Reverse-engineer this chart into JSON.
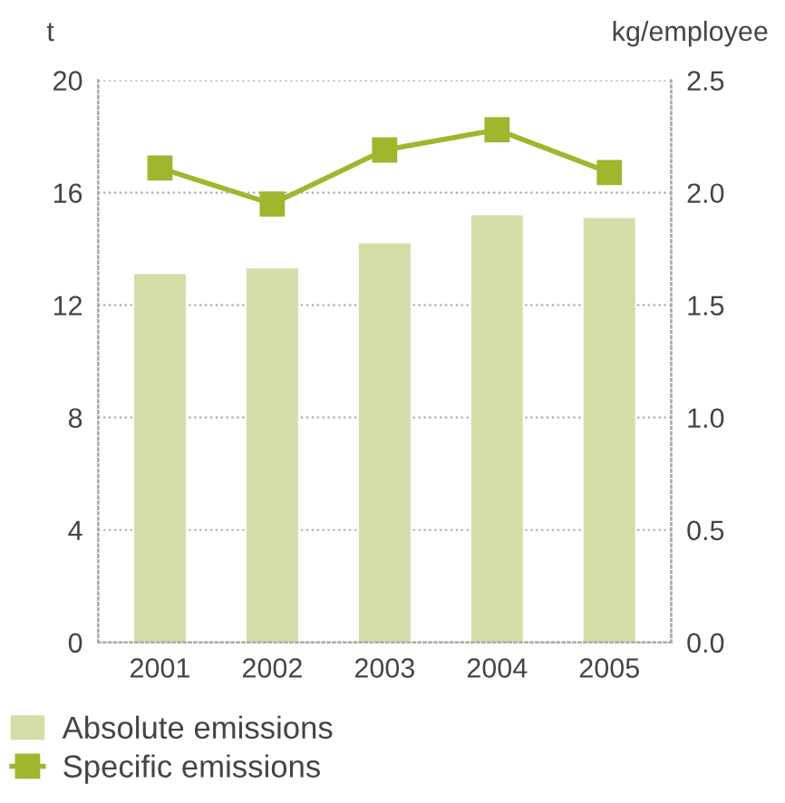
{
  "chart_data": {
    "type": "bar",
    "categories": [
      "2001",
      "2002",
      "2003",
      "2004",
      "2005"
    ],
    "ylabel": "t",
    "y2label": "kg/employee",
    "series": [
      {
        "name": "Absolute emissions",
        "color": "#d4dea8",
        "values": [
          13.1,
          13.3,
          14.2,
          15.2,
          15.1
        ]
      },
      {
        "name": "Specific emissions",
        "type": "line",
        "axis": "y2",
        "color": "#9fb62d",
        "values": [
          2.11,
          1.95,
          2.19,
          2.28,
          2.09
        ]
      }
    ],
    "ylim": [
      0,
      20
    ],
    "yticks": [
      0,
      4,
      8,
      12,
      16,
      20
    ],
    "y2lim": [
      0.0,
      2.5
    ],
    "y2ticks": [
      {
        "value": 0,
        "label": "0.0"
      },
      {
        "value": 0.5,
        "label": "0.5"
      },
      {
        "value": 1,
        "label": "1.0"
      },
      {
        "value": 1.5,
        "label": "1.5"
      },
      {
        "value": 2,
        "label": "2.0"
      },
      {
        "value": 2.5,
        "label": "2.5"
      }
    ],
    "grid": "y",
    "legend": "bottom",
    "marker": "square"
  }
}
